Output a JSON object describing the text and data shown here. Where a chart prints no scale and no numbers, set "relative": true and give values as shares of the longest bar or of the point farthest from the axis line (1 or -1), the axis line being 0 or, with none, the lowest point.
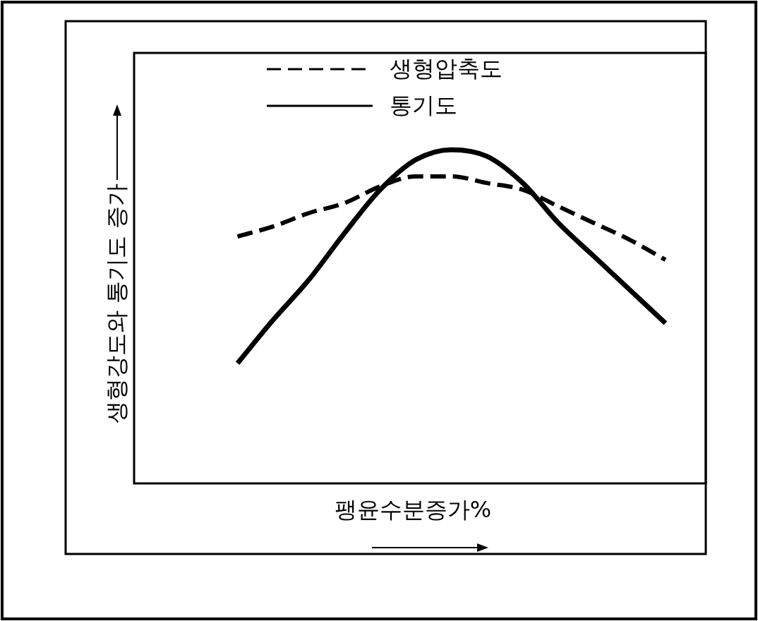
{
  "chart_data": {
    "type": "line",
    "relative": true,
    "xlabel": "팽윤수분증가%",
    "ylabel": "생형강도와 통기도 증가",
    "legend": "top",
    "categories": [
      null,
      null,
      null,
      null,
      null,
      null,
      null,
      null,
      null,
      null,
      null,
      null,
      null
    ],
    "series": [
      {
        "name": "생형압축도",
        "color": "#000000",
        "line_style": "dashed",
        "values": [
          0.74,
          0.77,
          0.81,
          0.84,
          0.89,
          0.92,
          0.92,
          0.9,
          0.88,
          0.83,
          0.78,
          0.73,
          0.67
        ]
      },
      {
        "name": "통기도",
        "color": "#000000",
        "line_style": "solid",
        "values": [
          0.36,
          0.49,
          0.61,
          0.75,
          0.88,
          0.97,
          1,
          0.98,
          0.9,
          0.78,
          0.68,
          0.58,
          0.48
        ]
      }
    ]
  }
}
